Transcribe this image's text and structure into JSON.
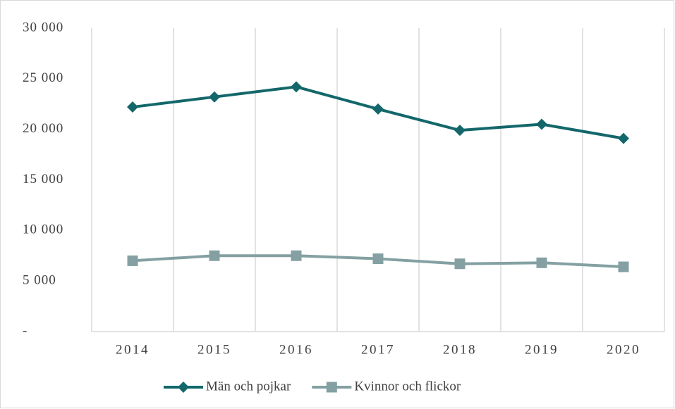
{
  "chart_data": {
    "type": "line",
    "categories": [
      "2014",
      "2015",
      "2016",
      "2017",
      "2018",
      "2019",
      "2020"
    ],
    "series": [
      {
        "name": "Män och pojkar",
        "color": "#13676a",
        "marker": "diamond",
        "values": [
          22200,
          23200,
          24200,
          22000,
          19900,
          20500,
          19100
        ]
      },
      {
        "name": "Kvinnor och flickor",
        "color": "#84a0a2",
        "marker": "square",
        "values": [
          7000,
          7500,
          7500,
          7200,
          6700,
          6800,
          6400
        ]
      }
    ],
    "ylim": [
      0,
      30000
    ],
    "yticks": [
      {
        "value": 0,
        "label": "-"
      },
      {
        "value": 5000,
        "label": "5 000"
      },
      {
        "value": 10000,
        "label": "10 000"
      },
      {
        "value": 15000,
        "label": "15 000"
      },
      {
        "value": 20000,
        "label": "20 000"
      },
      {
        "value": 25000,
        "label": "25 000"
      },
      {
        "value": 30000,
        "label": "30 000"
      }
    ],
    "grid": true,
    "legend": "bottom"
  }
}
